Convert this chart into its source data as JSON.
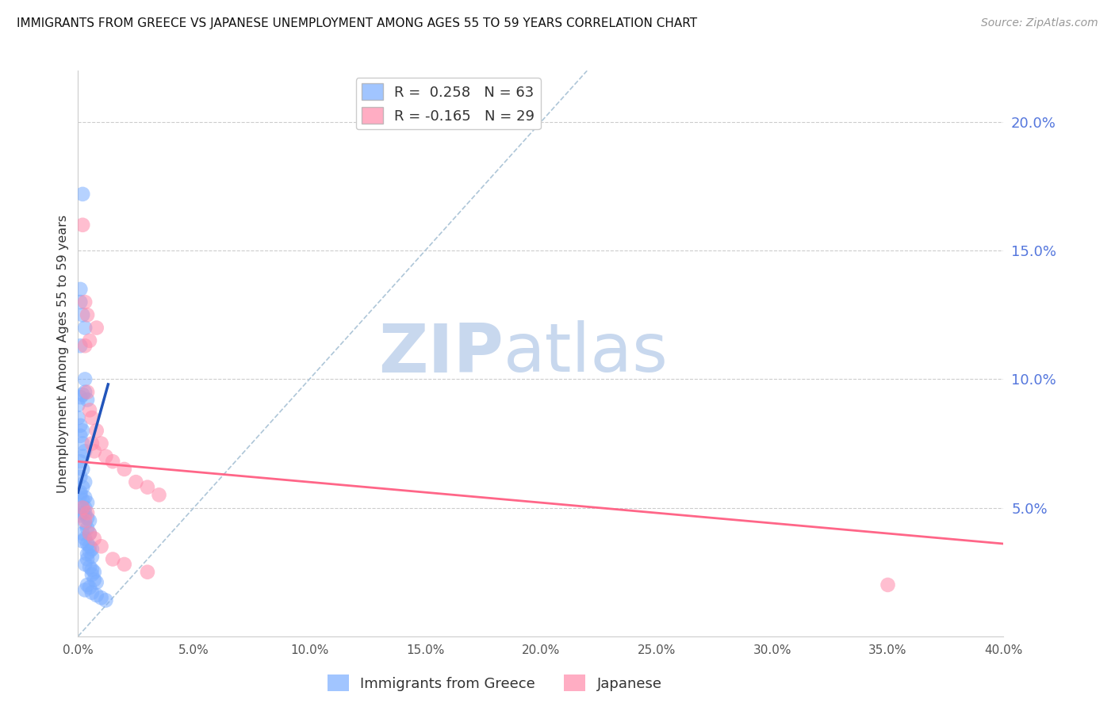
{
  "title": "IMMIGRANTS FROM GREECE VS JAPANESE UNEMPLOYMENT AMONG AGES 55 TO 59 YEARS CORRELATION CHART",
  "source": "Source: ZipAtlas.com",
  "ylabel": "Unemployment Among Ages 55 to 59 years",
  "xlim": [
    0.0,
    0.4
  ],
  "ylim": [
    0.0,
    0.22
  ],
  "xticks": [
    0.0,
    0.05,
    0.1,
    0.15,
    0.2,
    0.25,
    0.3,
    0.35,
    0.4
  ],
  "xtick_labels": [
    "0.0%",
    "5.0%",
    "10.0%",
    "15.0%",
    "20.0%",
    "25.0%",
    "30.0%",
    "35.0%",
    "40.0%"
  ],
  "yticks_right": [
    0.05,
    0.1,
    0.15,
    0.2
  ],
  "ytick_labels_right": [
    "5.0%",
    "10.0%",
    "15.0%",
    "20.0%"
  ],
  "blue_color": "#7aadff",
  "pink_color": "#ff8aaa",
  "line_blue_color": "#2255bb",
  "line_pink_color": "#ff6688",
  "dashed_line_color": "#aec6d8",
  "watermark_zip_color": "#c8d8ee",
  "watermark_atlas_color": "#c8d8ee",
  "legend_R_blue": " 0.258",
  "legend_N_blue": "63",
  "legend_R_pink": "-0.165",
  "legend_N_pink": "29",
  "blue_scatter_x": [
    0.002,
    0.001,
    0.001,
    0.002,
    0.003,
    0.001,
    0.003,
    0.002,
    0.001,
    0.0,
    0.0,
    0.001,
    0.002,
    0.001,
    0.002,
    0.003,
    0.002,
    0.001,
    0.002,
    0.001,
    0.003,
    0.002,
    0.001,
    0.003,
    0.004,
    0.002,
    0.003,
    0.004,
    0.005,
    0.003,
    0.004,
    0.005,
    0.003,
    0.002,
    0.004,
    0.005,
    0.006,
    0.005,
    0.004,
    0.006,
    0.004,
    0.003,
    0.005,
    0.006,
    0.007,
    0.006,
    0.007,
    0.008,
    0.004,
    0.005,
    0.003,
    0.006,
    0.008,
    0.01,
    0.012,
    0.001,
    0.002,
    0.003,
    0.002,
    0.001,
    0.003,
    0.004,
    0.002
  ],
  "blue_scatter_y": [
    0.172,
    0.135,
    0.13,
    0.125,
    0.12,
    0.113,
    0.1,
    0.094,
    0.093,
    0.09,
    0.085,
    0.082,
    0.08,
    0.078,
    0.075,
    0.072,
    0.07,
    0.068,
    0.065,
    0.062,
    0.06,
    0.058,
    0.056,
    0.054,
    0.052,
    0.05,
    0.048,
    0.046,
    0.045,
    0.044,
    0.042,
    0.04,
    0.038,
    0.037,
    0.036,
    0.035,
    0.034,
    0.033,
    0.032,
    0.031,
    0.03,
    0.028,
    0.027,
    0.026,
    0.025,
    0.024,
    0.022,
    0.021,
    0.02,
    0.019,
    0.018,
    0.017,
    0.016,
    0.015,
    0.014,
    0.055,
    0.053,
    0.05,
    0.048,
    0.047,
    0.095,
    0.092,
    0.04
  ],
  "pink_scatter_x": [
    0.002,
    0.003,
    0.004,
    0.005,
    0.003,
    0.004,
    0.005,
    0.006,
    0.007,
    0.008,
    0.006,
    0.008,
    0.01,
    0.012,
    0.015,
    0.02,
    0.025,
    0.03,
    0.035,
    0.002,
    0.004,
    0.003,
    0.005,
    0.007,
    0.35,
    0.01,
    0.015,
    0.02,
    0.03
  ],
  "pink_scatter_y": [
    0.16,
    0.13,
    0.125,
    0.115,
    0.113,
    0.095,
    0.088,
    0.075,
    0.072,
    0.12,
    0.085,
    0.08,
    0.075,
    0.07,
    0.068,
    0.065,
    0.06,
    0.058,
    0.055,
    0.05,
    0.048,
    0.045,
    0.04,
    0.038,
    0.02,
    0.035,
    0.03,
    0.028,
    0.025
  ],
  "blue_line_x": [
    0.0,
    0.013
  ],
  "blue_line_y": [
    0.056,
    0.098
  ],
  "pink_line_x": [
    0.0,
    0.4
  ],
  "pink_line_y": [
    0.068,
    0.036
  ],
  "diag_line_x": [
    0.0,
    0.22
  ],
  "diag_line_y": [
    0.0,
    0.22
  ]
}
